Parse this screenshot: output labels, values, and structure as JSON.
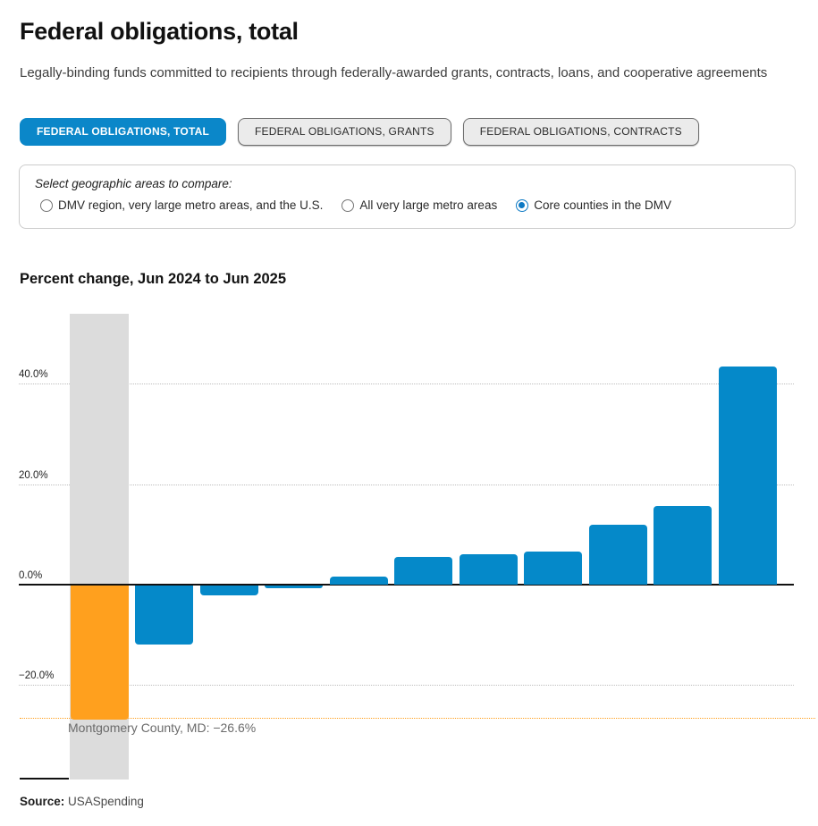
{
  "page": {
    "title": "Federal obligations, total",
    "subtitle": "Legally-binding funds committed to recipients through federally-awarded grants, contracts, loans, and cooperative agreements"
  },
  "tabs": [
    {
      "label": "FEDERAL OBLIGATIONS, TOTAL",
      "active": true
    },
    {
      "label": "FEDERAL OBLIGATIONS, GRANTS",
      "active": false
    },
    {
      "label": "FEDERAL OBLIGATIONS, CONTRACTS",
      "active": false
    }
  ],
  "geo_selector": {
    "label": "Select geographic areas to compare:",
    "options": [
      {
        "label": "DMV region, very large metro areas, and the U.S.",
        "selected": false
      },
      {
        "label": "All very large metro areas",
        "selected": false
      },
      {
        "label": "Core counties in the DMV",
        "selected": true
      }
    ]
  },
  "chart_data": {
    "type": "bar",
    "title": "Percent change, Jun 2024 to Jun 2025",
    "xlabel": "",
    "ylabel": "Percent change",
    "ylim": [
      -38,
      54
    ],
    "grid": "horizontal dotted",
    "legend": "none",
    "y_ticks": [
      {
        "value": 40,
        "label": "40.0%"
      },
      {
        "value": 20,
        "label": "20.0%"
      },
      {
        "value": 0,
        "label": "0.0%"
      },
      {
        "value": -20,
        "label": "−20.0%"
      }
    ],
    "values": [
      -26.6,
      -11.7,
      -2.0,
      -0.5,
      1.6,
      5.5,
      6.0,
      6.6,
      12.0,
      15.7,
      43.5
    ],
    "highlight_index": 0,
    "highlight_value": -26.6,
    "highlight_label": "Montgomery County, MD: −26.6%",
    "colors": {
      "bar": "#0589c9",
      "highlight_bar": "#ffa01e",
      "band": "#dcdcdc",
      "reference_line": "#ffa01e",
      "zero_line": "#111111"
    }
  },
  "source": {
    "label": "Source:",
    "value": "USASpending"
  }
}
